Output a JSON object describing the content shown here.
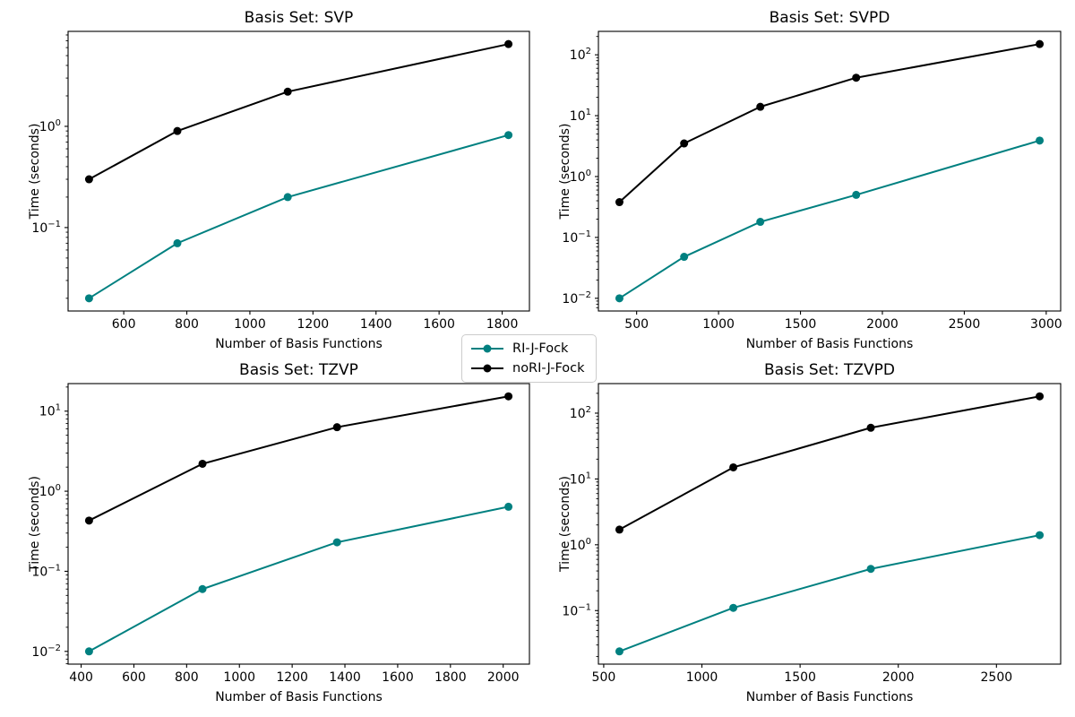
{
  "figure": {
    "background": "#ffffff",
    "axis_color": "#000000",
    "series_colors": {
      "ri": "#008080",
      "nori": "#000000"
    }
  },
  "legend": {
    "entries": [
      {
        "label": "RI-J-Fock",
        "color": "#008080"
      },
      {
        "label": "noRI-J-Fock",
        "color": "#000000"
      }
    ]
  },
  "chart_data": [
    {
      "type": "line",
      "title": "Basis Set: SVP",
      "xlabel": "Number of Basis Functions",
      "ylabel": "Time (seconds)",
      "yscale": "log",
      "grid": false,
      "xticks": [
        600,
        800,
        1000,
        1200,
        1400,
        1600,
        1800
      ],
      "x": [
        490,
        770,
        1120,
        1820
      ],
      "series": [
        {
          "name": "RI-J-Fock",
          "color": "#008080",
          "values": [
            0.02,
            0.07,
            0.2,
            0.82
          ]
        },
        {
          "name": "noRI-J-Fock",
          "color": "#000000",
          "values": [
            0.3,
            0.9,
            2.2,
            6.5
          ]
        }
      ]
    },
    {
      "type": "line",
      "title": "Basis Set: SVPD",
      "xlabel": "Number of Basis Functions",
      "ylabel": "Time (seconds)",
      "yscale": "log",
      "grid": false,
      "xticks": [
        500,
        1000,
        1500,
        2000,
        2500,
        3000
      ],
      "x": [
        395,
        790,
        1255,
        1840,
        2960
      ],
      "series": [
        {
          "name": "RI-J-Fock",
          "color": "#008080",
          "values": [
            0.01,
            0.048,
            0.18,
            0.5,
            3.9
          ]
        },
        {
          "name": "noRI-J-Fock",
          "color": "#000000",
          "values": [
            0.38,
            3.5,
            14,
            42,
            150
          ]
        }
      ]
    },
    {
      "type": "line",
      "title": "Basis Set: TZVP",
      "xlabel": "Number of Basis Functions",
      "ylabel": "Time (seconds)",
      "yscale": "log",
      "grid": false,
      "xticks": [
        400,
        600,
        800,
        1000,
        1200,
        1400,
        1600,
        1800,
        2000
      ],
      "x": [
        430,
        860,
        1370,
        2020
      ],
      "series": [
        {
          "name": "RI-J-Fock",
          "color": "#008080",
          "values": [
            0.01,
            0.06,
            0.23,
            0.64
          ]
        },
        {
          "name": "noRI-J-Fock",
          "color": "#000000",
          "values": [
            0.43,
            2.2,
            6.3,
            15.3
          ]
        }
      ]
    },
    {
      "type": "line",
      "title": "Basis Set: TZVPD",
      "xlabel": "Number of Basis Functions",
      "ylabel": "Time (seconds)",
      "yscale": "log",
      "grid": false,
      "xticks": [
        500,
        1000,
        1500,
        2000,
        2500
      ],
      "x": [
        580,
        1160,
        1860,
        2720
      ],
      "series": [
        {
          "name": "RI-J-Fock",
          "color": "#008080",
          "values": [
            0.024,
            0.11,
            0.43,
            1.4
          ]
        },
        {
          "name": "noRI-J-Fock",
          "color": "#000000",
          "values": [
            1.7,
            15,
            60,
            180
          ]
        }
      ]
    }
  ]
}
